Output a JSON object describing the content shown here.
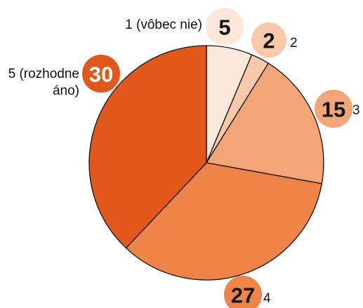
{
  "chart_data": {
    "type": "pie",
    "categories": [
      "1 (vôbec nie)",
      "2",
      "3",
      "4",
      "5 (rozhodne áno)"
    ],
    "values": [
      5,
      2,
      15,
      27,
      30
    ],
    "colors": [
      "#fde6da",
      "#f9c9ab",
      "#f2a678",
      "#ee8447",
      "#e2571b"
    ],
    "value_text_colors": [
      "#111111",
      "#111111",
      "#111111",
      "#111111",
      "#ffffff"
    ]
  }
}
